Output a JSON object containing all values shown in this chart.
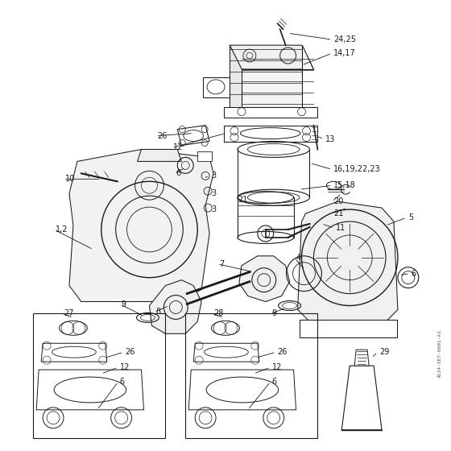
{
  "background_color": "#ffffff",
  "line_color": "#1a1a1a",
  "label_color": "#111111",
  "figure_size": [
    5.6,
    5.6
  ],
  "dpi": 100,
  "watermark": "4134-SET-0091-A1",
  "fs": 7.0,
  "lw": 0.75
}
